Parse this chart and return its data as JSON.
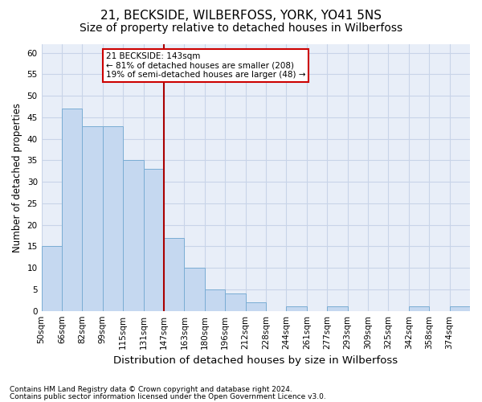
{
  "title1": "21, BECKSIDE, WILBERFOSS, YORK, YO41 5NS",
  "title2": "Size of property relative to detached houses in Wilberfoss",
  "xlabel": "Distribution of detached houses by size in Wilberfoss",
  "ylabel": "Number of detached properties",
  "bar_values": [
    15,
    47,
    43,
    43,
    35,
    33,
    17,
    10,
    5,
    4,
    2,
    0,
    1,
    0,
    1,
    0,
    0,
    0,
    1,
    0,
    1
  ],
  "bar_labels": [
    "50sqm",
    "66sqm",
    "82sqm",
    "99sqm",
    "115sqm",
    "131sqm",
    "147sqm",
    "163sqm",
    "180sqm",
    "196sqm",
    "212sqm",
    "228sqm",
    "244sqm",
    "261sqm",
    "277sqm",
    "293sqm",
    "309sqm",
    "325sqm",
    "342sqm",
    "358sqm",
    "374sqm"
  ],
  "bar_color": "#c5d8f0",
  "bar_edge_color": "#7aadd4",
  "grid_color": "#c8d4e8",
  "background_color": "#e8eef8",
  "vline_x": 6,
  "vline_color": "#aa0000",
  "annotation_text": "21 BECKSIDE: 143sqm\n← 81% of detached houses are smaller (208)\n19% of semi-detached houses are larger (48) →",
  "annotation_box_color": "#ffffff",
  "annotation_box_edgecolor": "#cc0000",
  "ylim": [
    0,
    62
  ],
  "yticks": [
    0,
    5,
    10,
    15,
    20,
    25,
    30,
    35,
    40,
    45,
    50,
    55,
    60
  ],
  "footer1": "Contains HM Land Registry data © Crown copyright and database right 2024.",
  "footer2": "Contains public sector information licensed under the Open Government Licence v3.0.",
  "title1_fontsize": 11,
  "title2_fontsize": 10,
  "tick_fontsize": 7.5,
  "ylabel_fontsize": 8.5,
  "xlabel_fontsize": 9.5,
  "footer_fontsize": 6.5
}
